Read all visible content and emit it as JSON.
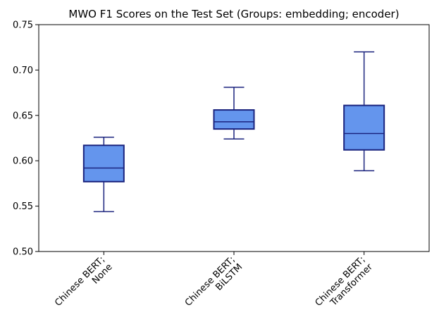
{
  "chart_data": {
    "type": "box",
    "title": "MWO F1 Scores on the Test Set (Groups: embedding; encoder)",
    "xlabel": "",
    "ylabel": "",
    "ylim": [
      0.5,
      0.75
    ],
    "yticks": [
      "0.50",
      "0.55",
      "0.60",
      "0.65",
      "0.70",
      "0.75"
    ],
    "box_fill": "#6495ED",
    "box_edge": "#1a237e",
    "categories": [
      {
        "lines": [
          "Chinese BERT;",
          "None"
        ],
        "whisker_low": 0.544,
        "q1": 0.577,
        "median": 0.592,
        "q3": 0.617,
        "whisker_high": 0.626
      },
      {
        "lines": [
          "Chinese BERT;",
          "BiLSTM"
        ],
        "whisker_low": 0.624,
        "q1": 0.635,
        "median": 0.643,
        "q3": 0.656,
        "whisker_high": 0.681
      },
      {
        "lines": [
          "Chinese BERT;",
          "Transformer"
        ],
        "whisker_low": 0.589,
        "q1": 0.612,
        "median": 0.63,
        "q3": 0.661,
        "whisker_high": 0.72
      }
    ]
  }
}
